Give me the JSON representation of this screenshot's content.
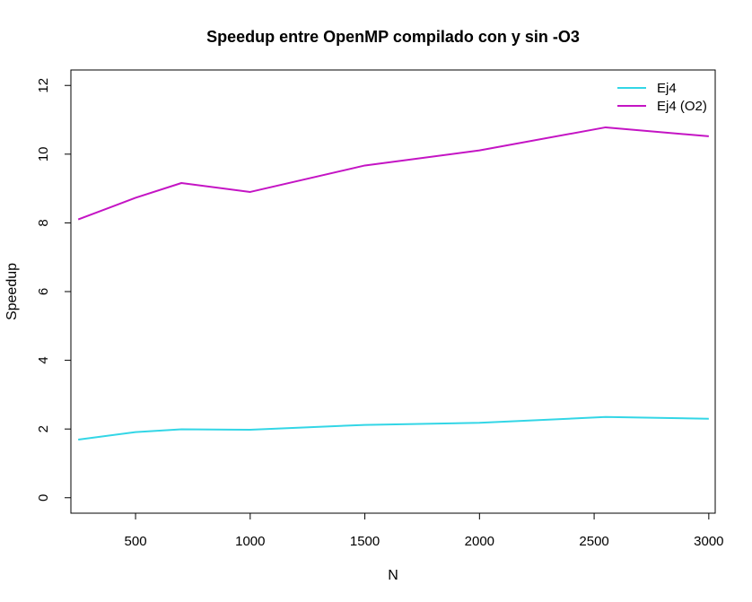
{
  "chart_data": {
    "type": "line",
    "title": "Speedup entre OpenMP compilado con y sin -O3",
    "xlabel": "N",
    "ylabel": "Speedup",
    "xlim": [
      218,
      3028
    ],
    "ylim": [
      -0.45,
      12.45
    ],
    "xticks": [
      500,
      1000,
      1500,
      2000,
      2500,
      3000
    ],
    "yticks": [
      0,
      2,
      4,
      6,
      8,
      10,
      12
    ],
    "grid": false,
    "legend": "top-right",
    "series": [
      {
        "name": "Ej4",
        "color": "#33d6e6",
        "x": [
          250,
          500,
          700,
          1000,
          1500,
          2000,
          2550,
          3000
        ],
        "y": [
          1.69,
          1.91,
          1.99,
          1.98,
          2.12,
          2.18,
          2.35,
          2.3
        ]
      },
      {
        "name": "Ej4 (O2)",
        "color": "#c414c4",
        "x": [
          250,
          500,
          700,
          1000,
          1500,
          2000,
          2550,
          3000
        ],
        "y": [
          8.1,
          8.73,
          9.16,
          8.9,
          9.67,
          10.11,
          10.78,
          10.52
        ]
      }
    ]
  }
}
